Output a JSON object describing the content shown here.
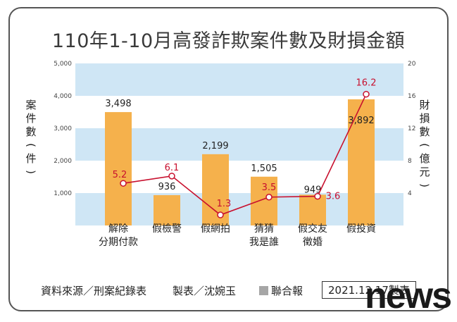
{
  "title": "110年1-10月高發詐欺案件數及財損金額",
  "chart_data": {
    "type": "bar",
    "title": "110年1-10月高發詐欺案件數及財損金額",
    "categories": [
      [
        "解除",
        "分期付款"
      ],
      [
        "假檢警"
      ],
      [
        "假網拍"
      ],
      [
        "猜猜",
        "我是誰"
      ],
      [
        "假交友",
        "徵婚"
      ],
      [
        "假投資"
      ]
    ],
    "left_axis": {
      "label": "案件數（件）",
      "ylim": [
        0,
        5000
      ],
      "ticks": [
        "1,000",
        "2,000",
        "3,000",
        "4,000",
        "5,000"
      ]
    },
    "right_axis": {
      "label": "財損數（億元）",
      "ylim": [
        0,
        20
      ],
      "ticks": [
        "4",
        "8",
        "12",
        "16",
        "20"
      ]
    },
    "series": [
      {
        "name": "案件數",
        "kind": "bar",
        "axis": "left",
        "values": [
          3498,
          936,
          2199,
          1505,
          949,
          3892
        ],
        "labels": [
          "3,498",
          "936",
          "2,199",
          "1,505",
          "949",
          "3,892"
        ]
      },
      {
        "name": "財損數",
        "kind": "line",
        "axis": "right",
        "values": [
          5.2,
          6.1,
          1.3,
          3.5,
          3.6,
          16.2
        ],
        "labels": [
          "5.2",
          "6.1",
          "1.3",
          "3.5",
          "3.6",
          "16.2"
        ]
      }
    ],
    "colors": {
      "bar": "#f5b14c",
      "line": "#c8102e",
      "band": "#cfe6f5"
    },
    "grid": "alternating horizontal bands"
  },
  "footer": {
    "source": "資料來源／刑案紀錄表",
    "maker": "製表／沈婉玉",
    "publisher": "聯合報",
    "date": "2021.12.17製表"
  },
  "logo": "news"
}
